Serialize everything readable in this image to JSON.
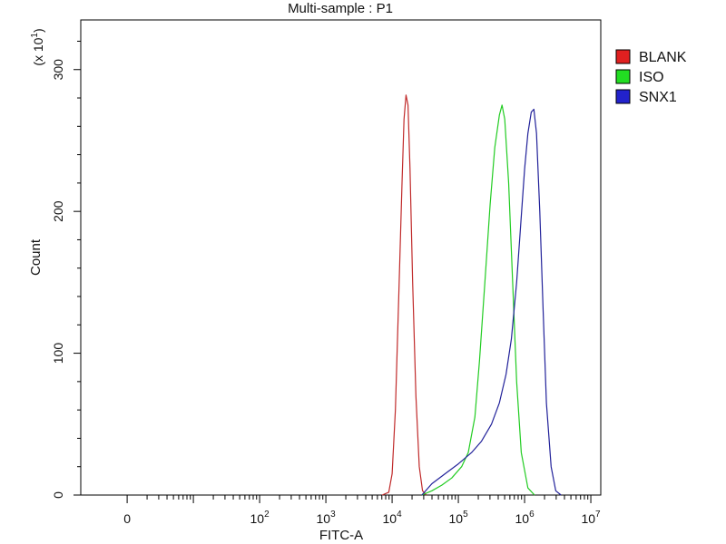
{
  "chart_data": {
    "type": "line",
    "title": "Multi-sample : P1",
    "xlabel": "FITC-A",
    "ylabel": "Count",
    "y_multiplier_label": "(x 10",
    "y_multiplier_exp": "1",
    "y_multiplier_close": ")",
    "x_scale": "log",
    "ylim": [
      0,
      335
    ],
    "y_ticks": [
      {
        "value": 0,
        "label": "0"
      },
      {
        "value": 100,
        "label": "100"
      },
      {
        "value": 200,
        "label": "200"
      },
      {
        "value": 300,
        "label": "300"
      }
    ],
    "x_ticks": [
      {
        "value": 0,
        "base": "0",
        "exp": ""
      },
      {
        "value": 2,
        "base": "10",
        "exp": "2"
      },
      {
        "value": 3,
        "base": "10",
        "exp": "3"
      },
      {
        "value": 4,
        "base": "10",
        "exp": "4"
      },
      {
        "value": 5,
        "base": "10",
        "exp": "5"
      },
      {
        "value": 6,
        "base": "10",
        "exp": "6"
      },
      {
        "value": 7,
        "base": "10",
        "exp": "7"
      }
    ],
    "legend_position": "right",
    "legend": [
      {
        "label": "BLANK",
        "color": "#e02020"
      },
      {
        "label": "ISO",
        "color": "#22dd22"
      },
      {
        "label": "SNX1",
        "color": "#2222cc"
      }
    ],
    "series": [
      {
        "name": "BLANK",
        "color": "#c02a2a",
        "points": [
          [
            3.85,
            0
          ],
          [
            3.95,
            2
          ],
          [
            4.0,
            15
          ],
          [
            4.05,
            60
          ],
          [
            4.1,
            140
          ],
          [
            4.15,
            220
          ],
          [
            4.18,
            265
          ],
          [
            4.21,
            282
          ],
          [
            4.24,
            275
          ],
          [
            4.27,
            230
          ],
          [
            4.31,
            150
          ],
          [
            4.36,
            70
          ],
          [
            4.41,
            20
          ],
          [
            4.46,
            3
          ],
          [
            4.52,
            0
          ]
        ]
      },
      {
        "name": "ISO",
        "color": "#22cc22",
        "points": [
          [
            4.45,
            0
          ],
          [
            4.6,
            3
          ],
          [
            4.75,
            7
          ],
          [
            4.9,
            12
          ],
          [
            5.05,
            20
          ],
          [
            5.15,
            30
          ],
          [
            5.25,
            55
          ],
          [
            5.32,
            95
          ],
          [
            5.4,
            150
          ],
          [
            5.48,
            205
          ],
          [
            5.55,
            245
          ],
          [
            5.62,
            268
          ],
          [
            5.66,
            275
          ],
          [
            5.7,
            265
          ],
          [
            5.76,
            220
          ],
          [
            5.82,
            150
          ],
          [
            5.88,
            80
          ],
          [
            5.95,
            30
          ],
          [
            6.05,
            5
          ],
          [
            6.15,
            0
          ]
        ]
      },
      {
        "name": "SNX1",
        "color": "#22229a",
        "points": [
          [
            4.45,
            0
          ],
          [
            4.6,
            8
          ],
          [
            4.8,
            15
          ],
          [
            5.0,
            22
          ],
          [
            5.2,
            30
          ],
          [
            5.35,
            38
          ],
          [
            5.5,
            50
          ],
          [
            5.62,
            65
          ],
          [
            5.72,
            85
          ],
          [
            5.8,
            110
          ],
          [
            5.88,
            150
          ],
          [
            5.94,
            190
          ],
          [
            6.0,
            230
          ],
          [
            6.05,
            255
          ],
          [
            6.1,
            270
          ],
          [
            6.14,
            272
          ],
          [
            6.18,
            255
          ],
          [
            6.23,
            200
          ],
          [
            6.28,
            130
          ],
          [
            6.33,
            65
          ],
          [
            6.4,
            20
          ],
          [
            6.47,
            3
          ],
          [
            6.55,
            0
          ]
        ]
      }
    ]
  }
}
